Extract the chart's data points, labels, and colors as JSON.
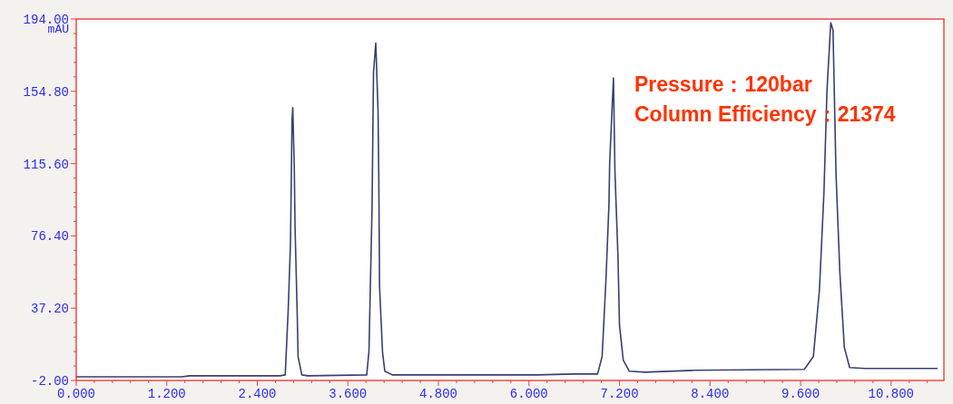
{
  "chart_data": {
    "type": "line",
    "ylabel": "mAU",
    "annotations": [
      "Pressure：120bar",
      "Column Efficiency：21374"
    ],
    "x": [
      0,
      1.4,
      1.5,
      2.7,
      2.77,
      2.81,
      2.84,
      2.86,
      2.87,
      2.89,
      2.9,
      2.93,
      2.94,
      2.99,
      3.07,
      3.85,
      3.88,
      3.9,
      3.92,
      3.94,
      3.97,
      4.0,
      4.01,
      4.02,
      4.06,
      4.09,
      4.19,
      6.1,
      6.6,
      6.91,
      6.97,
      7.02,
      7.06,
      7.07,
      7.12,
      7.14,
      7.18,
      7.2,
      7.25,
      7.33,
      7.54,
      8.2,
      9.65,
      9.77,
      9.85,
      9.91,
      9.95,
      10.0,
      10.03,
      10.07,
      10.12,
      10.18,
      10.25,
      10.45,
      11.41
    ],
    "values": [
      0,
      0,
      0.5,
      0.5,
      1,
      37,
      73,
      139,
      146,
      113,
      81,
      32,
      11,
      1,
      0.5,
      1,
      14,
      53,
      90,
      165,
      181,
      144,
      108,
      49,
      13,
      3,
      1,
      1,
      1.5,
      1.5,
      11,
      52,
      93,
      116,
      162,
      111,
      65,
      28,
      9,
      3,
      2.5,
      3.5,
      4,
      11,
      47,
      100,
      155,
      192,
      188,
      110,
      57,
      16,
      5,
      4.5,
      4.5
    ],
    "color": "#3a3f6e",
    "marker": "none",
    "line_style": "solid",
    "grid": false,
    "xlim": [
      0,
      11.5
    ],
    "ylim": [
      -2,
      194
    ],
    "xticks": [
      {
        "value": 0,
        "label": "0.000"
      },
      {
        "value": 1.2,
        "label": "1.200"
      },
      {
        "value": 2.4,
        "label": "2.400"
      },
      {
        "value": 3.6,
        "label": "3.600"
      },
      {
        "value": 4.8,
        "label": "4.800"
      },
      {
        "value": 6,
        "label": "6.000"
      },
      {
        "value": 7.2,
        "label": "7.200"
      },
      {
        "value": 8.4,
        "label": "8.400"
      },
      {
        "value": 9.6,
        "label": "9.600"
      },
      {
        "value": 10.8,
        "label": "10.800"
      }
    ],
    "yticks": [
      {
        "value": -2,
        "label": "-2.00"
      },
      {
        "value": 37.2,
        "label": "37.20"
      },
      {
        "value": 76.4,
        "label": "76.40"
      },
      {
        "value": 115.6,
        "label": "115.60"
      },
      {
        "value": 154.8,
        "label": "154.80"
      },
      {
        "value": 194,
        "label": "194.00"
      }
    ]
  }
}
